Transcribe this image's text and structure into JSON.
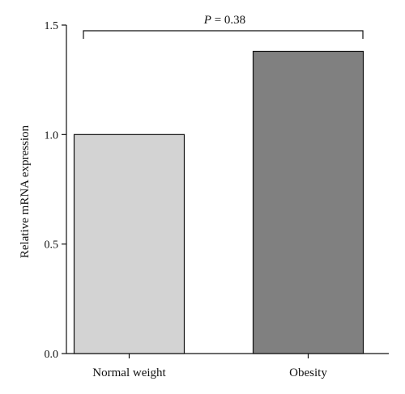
{
  "chart_data": {
    "type": "bar",
    "categories": [
      "Normal weight",
      "Obesity"
    ],
    "values": [
      1.0,
      1.38
    ],
    "colors": [
      "#d3d3d3",
      "#808080"
    ],
    "ylabel": "Relative mRNA expression",
    "xlabel": "",
    "title": "",
    "ylim": [
      0,
      1.5
    ],
    "yticks": [
      0.0,
      0.5,
      1.0,
      1.5
    ],
    "ytick_labels": [
      "0.0",
      "0.5",
      "1.0",
      "1.5"
    ],
    "grid": false,
    "legend": "none",
    "annotation": {
      "p_symbol": "P",
      "p_rest": " = 0.38",
      "between": [
        "Normal weight",
        "Obesity"
      ]
    }
  }
}
